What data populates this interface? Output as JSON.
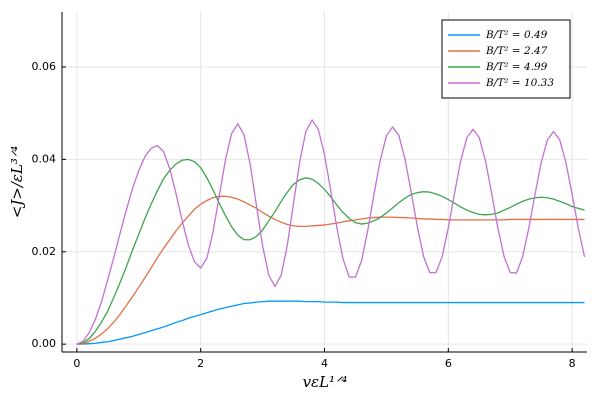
{
  "chart_data": {
    "type": "line",
    "xlabel": "vεL¹ᐟ⁴",
    "ylabel": "<J>/εL³ᐟ⁴",
    "xlim": [
      -0.24,
      8.24
    ],
    "ylim": [
      -0.0017,
      0.0719
    ],
    "xticks": [
      0,
      2,
      4,
      6,
      8
    ],
    "yticks": [
      {
        "value": 0,
        "label": "0.00"
      },
      {
        "value": 0.02,
        "label": "0.02"
      },
      {
        "value": 0.04,
        "label": "0.04"
      },
      {
        "value": 0.06,
        "label": "0.06"
      }
    ],
    "grid": true,
    "legend": "top-right",
    "x": [
      0,
      0.1,
      0.2,
      0.3,
      0.4,
      0.5,
      0.6,
      0.7,
      0.8,
      0.9,
      1,
      1.1,
      1.2,
      1.3,
      1.4,
      1.5,
      1.6,
      1.7,
      1.8,
      1.9,
      2,
      2.1,
      2.2,
      2.3,
      2.4,
      2.5,
      2.6,
      2.7,
      2.8,
      2.9,
      3,
      3.1,
      3.2,
      3.3,
      3.4,
      3.5,
      3.6,
      3.7,
      3.8,
      3.9,
      4,
      4.1,
      4.2,
      4.3,
      4.4,
      4.5,
      4.6,
      4.7,
      4.8,
      4.9,
      5,
      5.1,
      5.2,
      5.3,
      5.4,
      5.5,
      5.6,
      5.7,
      5.8,
      5.9,
      6,
      6.1,
      6.2,
      6.3,
      6.4,
      6.5,
      6.6,
      6.7,
      6.8,
      6.9,
      7,
      7.1,
      7.2,
      7.3,
      7.4,
      7.5,
      7.6,
      7.7,
      7.8,
      7.9,
      8,
      8.1,
      8.2
    ],
    "series": [
      {
        "name": "B/T² = 0.49",
        "color": "#009AFA",
        "values": [
          0,
          2e-05,
          0.0001,
          0.0002,
          0.0004,
          0.0005,
          0.0008,
          0.0011,
          0.0014,
          0.0017,
          0.0021,
          0.0025,
          0.0029,
          0.0033,
          0.0037,
          0.0042,
          0.0047,
          0.0051,
          0.0056,
          0.006,
          0.0064,
          0.0068,
          0.0072,
          0.0076,
          0.0079,
          0.0082,
          0.0085,
          0.0088,
          0.0089,
          0.0091,
          0.0092,
          0.0093,
          0.0093,
          0.0093,
          0.0093,
          0.0093,
          0.0093,
          0.0092,
          0.0092,
          0.0092,
          0.0091,
          0.0091,
          0.0091,
          0.009,
          0.009,
          0.009,
          0.009,
          0.009,
          0.009,
          0.009,
          0.009,
          0.009,
          0.009,
          0.009,
          0.009,
          0.009,
          0.009,
          0.009,
          0.009,
          0.009,
          0.009,
          0.009,
          0.009,
          0.009,
          0.009,
          0.009,
          0.009,
          0.009,
          0.009,
          0.009,
          0.009,
          0.009,
          0.009,
          0.009,
          0.009,
          0.009,
          0.009,
          0.009,
          0.009,
          0.009,
          0.009,
          0.009,
          0.009
        ]
      },
      {
        "name": "B/T² = 2.47",
        "color": "#E36F47",
        "values": [
          0,
          0.0001,
          0.0006,
          0.0013,
          0.0022,
          0.0034,
          0.0048,
          0.0065,
          0.0084,
          0.0103,
          0.0123,
          0.0144,
          0.0165,
          0.0187,
          0.0207,
          0.0226,
          0.0245,
          0.0262,
          0.0277,
          0.0292,
          0.0303,
          0.0311,
          0.0317,
          0.032,
          0.032,
          0.0318,
          0.0314,
          0.0308,
          0.0301,
          0.0294,
          0.0285,
          0.0277,
          0.027,
          0.0264,
          0.0259,
          0.0256,
          0.0255,
          0.0255,
          0.0256,
          0.0257,
          0.0258,
          0.026,
          0.0262,
          0.0265,
          0.0267,
          0.0269,
          0.0271,
          0.0273,
          0.0274,
          0.0275,
          0.0275,
          0.0275,
          0.0274,
          0.0274,
          0.0273,
          0.0272,
          0.0271,
          0.0271,
          0.027,
          0.027,
          0.0269,
          0.0269,
          0.0269,
          0.0269,
          0.0269,
          0.0269,
          0.0269,
          0.0269,
          0.0269,
          0.0269,
          0.027,
          0.027,
          0.027,
          0.027,
          0.027,
          0.027,
          0.027,
          0.027,
          0.027,
          0.027,
          0.027,
          0.027,
          0.027
        ]
      },
      {
        "name": "B/T² = 4.99",
        "color": "#3EA44E",
        "values": [
          0,
          0.0003,
          0.0012,
          0.0028,
          0.0048,
          0.0072,
          0.0102,
          0.0134,
          0.0168,
          0.0204,
          0.0238,
          0.0272,
          0.0303,
          0.0332,
          0.0358,
          0.0376,
          0.039,
          0.0398,
          0.04,
          0.0395,
          0.0382,
          0.036,
          0.0334,
          0.0305,
          0.0278,
          0.0254,
          0.0236,
          0.0226,
          0.0226,
          0.0233,
          0.0247,
          0.0267,
          0.0287,
          0.0309,
          0.0329,
          0.0346,
          0.0356,
          0.036,
          0.0357,
          0.0348,
          0.0335,
          0.0319,
          0.0301,
          0.0285,
          0.0272,
          0.0263,
          0.026,
          0.0262,
          0.0267,
          0.0274,
          0.0284,
          0.0295,
          0.0306,
          0.0316,
          0.0324,
          0.0328,
          0.033,
          0.0329,
          0.0325,
          0.032,
          0.0313,
          0.0305,
          0.0297,
          0.029,
          0.0285,
          0.0281,
          0.028,
          0.0281,
          0.0284,
          0.029,
          0.0296,
          0.0303,
          0.0309,
          0.0314,
          0.0317,
          0.0318,
          0.0317,
          0.0314,
          0.0309,
          0.0304,
          0.0298,
          0.0294,
          0.029
        ]
      },
      {
        "name": "B/T² = 10.33",
        "color": "#C371D2",
        "values": [
          0,
          0.0006,
          0.0025,
          0.0054,
          0.0093,
          0.014,
          0.0189,
          0.0241,
          0.0291,
          0.0337,
          0.0376,
          0.0406,
          0.0424,
          0.043,
          0.0417,
          0.038,
          0.0327,
          0.0268,
          0.0215,
          0.0178,
          0.0165,
          0.0186,
          0.0243,
          0.0321,
          0.0399,
          0.0456,
          0.0477,
          0.0453,
          0.0389,
          0.0301,
          0.0213,
          0.0149,
          0.0125,
          0.0149,
          0.0215,
          0.0305,
          0.0395,
          0.0461,
          0.0485,
          0.0465,
          0.041,
          0.0333,
          0.0252,
          0.0184,
          0.0145,
          0.0145,
          0.0181,
          0.0247,
          0.0325,
          0.0398,
          0.0451,
          0.047,
          0.0452,
          0.0401,
          0.0329,
          0.0254,
          0.019,
          0.0155,
          0.0155,
          0.0189,
          0.0252,
          0.0326,
          0.0397,
          0.0447,
          0.0465,
          0.0447,
          0.0397,
          0.0326,
          0.0252,
          0.019,
          0.0155,
          0.0154,
          0.0189,
          0.0251,
          0.0324,
          0.0393,
          0.0442,
          0.046,
          0.0442,
          0.0393,
          0.0324,
          0.0251,
          0.0189
        ]
      }
    ]
  }
}
